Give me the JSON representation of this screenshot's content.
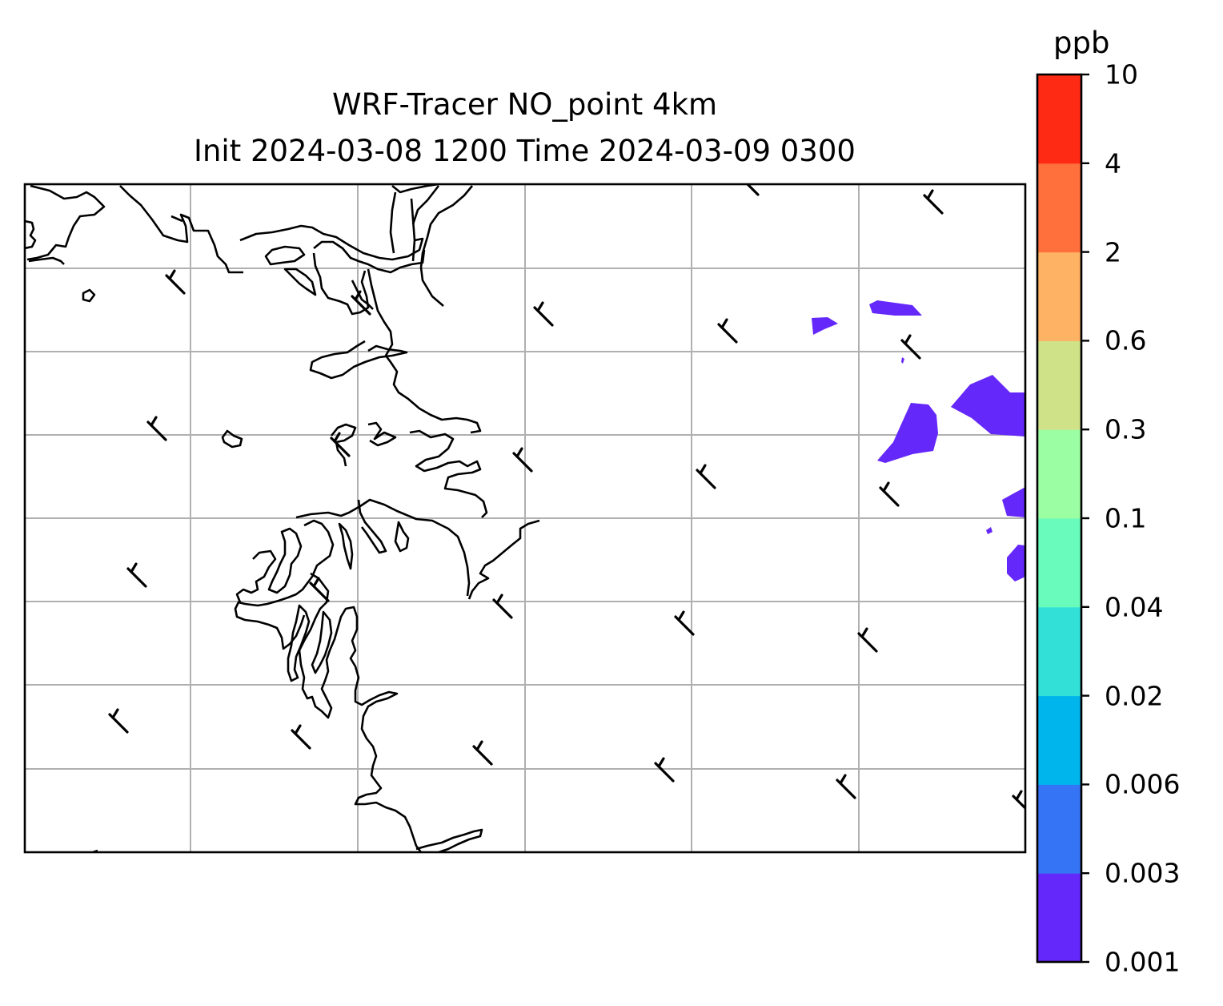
{
  "title_line1": "WRF-Tracer NO_point 4km",
  "title_line2": "Init 2024-03-08 1200 Time 2024-03-09 0300",
  "colorbar": {
    "unit": "ppb",
    "levels": [
      "0.001",
      "0.003",
      "0.006",
      "0.02",
      "0.04",
      "0.1",
      "0.3",
      "0.6",
      "2",
      "4",
      "10"
    ],
    "colors": [
      "#6528fa",
      "#3574f4",
      "#00b4ec",
      "#33e0d8",
      "#69fbbc",
      "#9cfea2",
      "#cfe288",
      "#feb264",
      "#ff703c",
      "#ff2a14"
    ]
  },
  "map": {
    "gridlines": true,
    "plume_color": "#6528fa",
    "coastline_color": "#000000",
    "wind_barb_color": "#000000"
  }
}
